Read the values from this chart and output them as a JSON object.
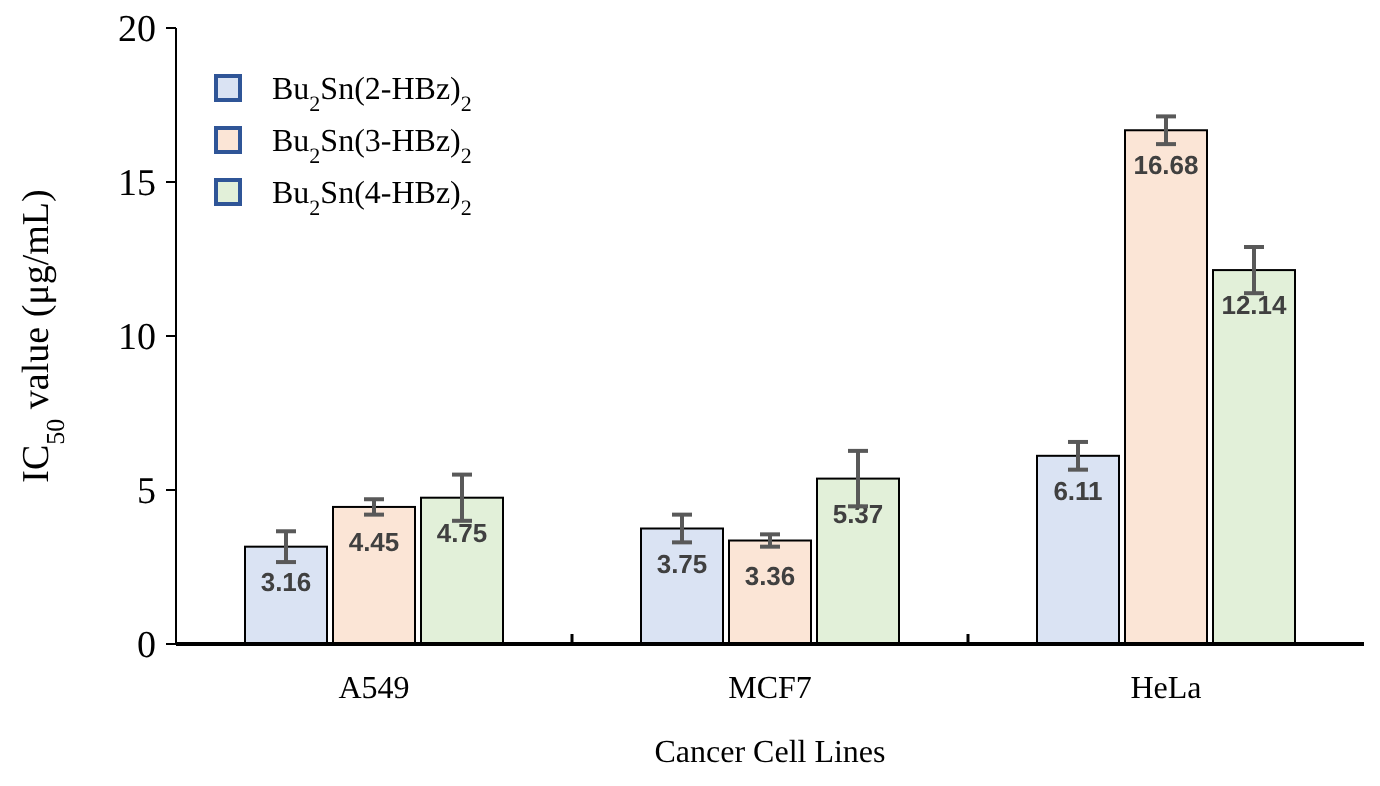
{
  "chart_data": {
    "type": "bar",
    "xlabel": "Cancer Cell Lines",
    "ylabel": "IC$_{50}$ value (μg/mL)",
    "categories": [
      "A549",
      "MCF7",
      "HeLa"
    ],
    "series": [
      {
        "name": "Bu$_{2}$Sn(2-HBz)$_{2}$",
        "color": "#dae3f3",
        "values": [
          3.16,
          3.75,
          6.11
        ],
        "errors": [
          0.5,
          0.45,
          0.45
        ]
      },
      {
        "name": "Bu$_{2}$Sn(3-HBz)$_{2}$",
        "color": "#fbe5d6",
        "values": [
          4.45,
          3.36,
          16.68
        ],
        "errors": [
          0.25,
          0.2,
          0.45
        ]
      },
      {
        "name": "Bu$_{2}$Sn(4-HBz)$_{2}$",
        "color": "#e2f0d9",
        "values": [
          4.75,
          5.37,
          12.14
        ],
        "errors": [
          0.75,
          0.9,
          0.75
        ]
      }
    ],
    "ylim": [
      0,
      20
    ],
    "yticks": [
      0,
      5,
      10,
      15,
      20
    ],
    "grid": false,
    "legend": "top left",
    "data_labels": true
  }
}
